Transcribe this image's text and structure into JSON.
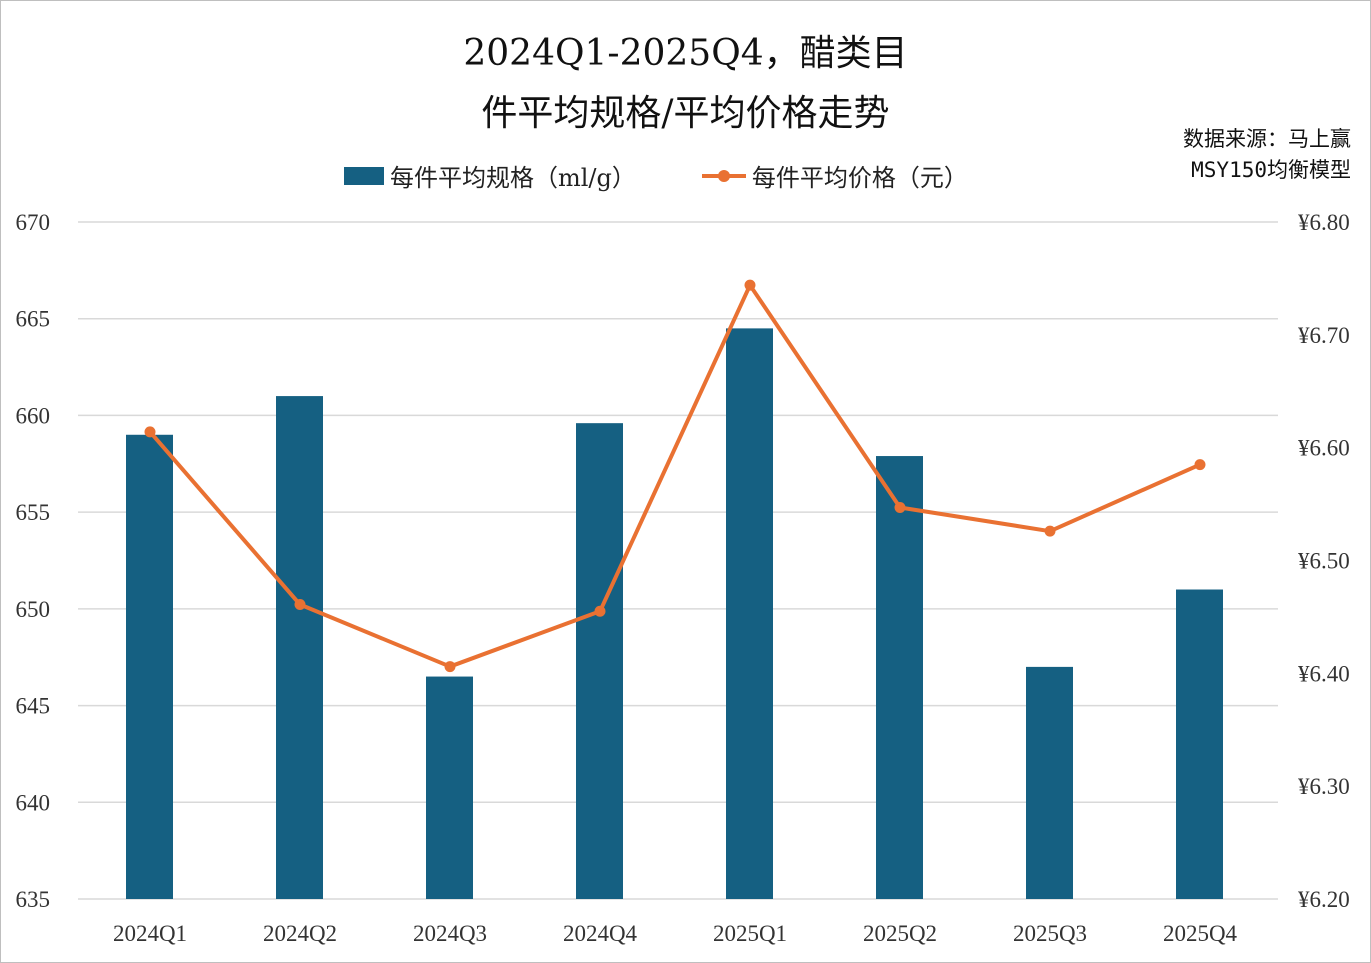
{
  "chart_data": {
    "type": "bar+line",
    "title_line1": "2024Q1-2025Q4，醋类目",
    "title_line2": "件平均规格/平均价格走势",
    "source_line1": "数据来源：马上赢",
    "source_line2": "MSY150均衡模型",
    "categories": [
      "2024Q1",
      "2024Q2",
      "2024Q3",
      "2024Q4",
      "2025Q1",
      "2025Q2",
      "2025Q3",
      "2025Q4"
    ],
    "series": [
      {
        "name": "每件平均规格（ml/g）",
        "type": "bar",
        "axis": "left",
        "color": "#156082",
        "values": [
          659.0,
          661.0,
          646.5,
          659.6,
          664.5,
          657.9,
          647.0,
          651.0
        ]
      },
      {
        "name": "每件平均价格（元）",
        "type": "line",
        "axis": "right",
        "color": "#e97132",
        "values": [
          6.614,
          6.461,
          6.406,
          6.455,
          6.744,
          6.547,
          6.526,
          6.585
        ]
      }
    ],
    "left_axis": {
      "min": 635,
      "max": 670,
      "ticks": [
        "635",
        "640",
        "645",
        "650",
        "655",
        "660",
        "665",
        "670"
      ]
    },
    "right_axis": {
      "min": 6.2,
      "max": 6.8,
      "ticks": [
        "¥6.20",
        "¥6.30",
        "¥6.40",
        "¥6.50",
        "¥6.60",
        "¥6.70",
        "¥6.80"
      ]
    },
    "grid": true,
    "legend_position": "top"
  }
}
